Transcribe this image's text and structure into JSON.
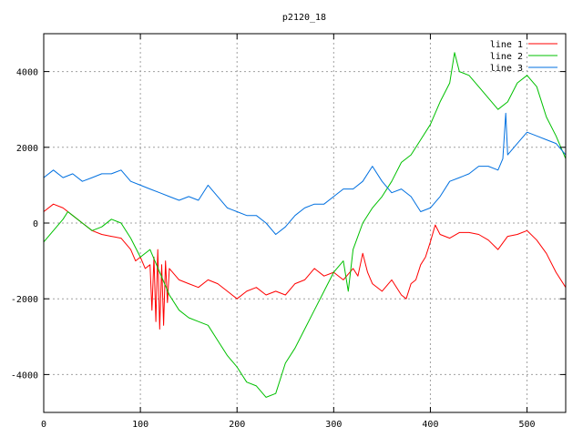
{
  "chart_data": {
    "type": "line",
    "title": "p2120_18",
    "xlabel": "",
    "ylabel": "",
    "xlim": [
      0,
      540
    ],
    "ylim": [
      -5000,
      5000
    ],
    "xticks": [
      0,
      100,
      200,
      300,
      400,
      500
    ],
    "yticks": [
      -4000,
      -2000,
      0,
      2000,
      4000
    ],
    "grid": true,
    "legend_position": "top-right",
    "series": [
      {
        "name": "line 1",
        "color": "#ff0000",
        "x": [
          0,
          10,
          20,
          30,
          40,
          50,
          60,
          70,
          80,
          90,
          95,
          100,
          105,
          110,
          112,
          114,
          116,
          118,
          120,
          122,
          124,
          126,
          128,
          130,
          140,
          150,
          160,
          170,
          180,
          190,
          200,
          210,
          220,
          230,
          240,
          250,
          260,
          270,
          280,
          290,
          300,
          310,
          320,
          325,
          330,
          335,
          340,
          350,
          360,
          370,
          375,
          380,
          385,
          390,
          395,
          400,
          405,
          410,
          420,
          430,
          440,
          450,
          460,
          470,
          480,
          490,
          500,
          510,
          520,
          530,
          540
        ],
        "y": [
          300,
          500,
          400,
          200,
          0,
          -200,
          -300,
          -350,
          -400,
          -700,
          -1000,
          -900,
          -1200,
          -1100,
          -2300,
          -900,
          -2600,
          -700,
          -2800,
          -1100,
          -2700,
          -1000,
          -2100,
          -1200,
          -1500,
          -1600,
          -1700,
          -1500,
          -1600,
          -1800,
          -2000,
          -1800,
          -1700,
          -1900,
          -1800,
          -1900,
          -1600,
          -1500,
          -1200,
          -1400,
          -1300,
          -1500,
          -1200,
          -1400,
          -800,
          -1300,
          -1600,
          -1800,
          -1500,
          -1900,
          -2000,
          -1600,
          -1500,
          -1100,
          -900,
          -500,
          -50,
          -300,
          -400,
          -250,
          -250,
          -300,
          -450,
          -700,
          -350,
          -300,
          -200,
          -450,
          -800,
          -1300,
          -1700
        ]
      },
      {
        "name": "line 2",
        "color": "#00c000",
        "x": [
          0,
          10,
          20,
          25,
          30,
          40,
          50,
          60,
          70,
          80,
          90,
          100,
          110,
          120,
          130,
          140,
          150,
          160,
          170,
          180,
          190,
          200,
          210,
          220,
          230,
          240,
          250,
          260,
          270,
          280,
          290,
          300,
          310,
          315,
          320,
          330,
          340,
          350,
          360,
          370,
          380,
          390,
          400,
          410,
          420,
          425,
          430,
          440,
          450,
          460,
          470,
          480,
          490,
          500,
          510,
          520,
          530,
          540
        ],
        "y": [
          -500,
          -200,
          100,
          300,
          200,
          0,
          -200,
          -100,
          100,
          0,
          -400,
          -900,
          -700,
          -1300,
          -1900,
          -2300,
          -2500,
          -2600,
          -2700,
          -3100,
          -3500,
          -3800,
          -4200,
          -4300,
          -4600,
          -4500,
          -3700,
          -3300,
          -2800,
          -2300,
          -1800,
          -1300,
          -1000,
          -1800,
          -700,
          0,
          400,
          700,
          1100,
          1600,
          1800,
          2200,
          2600,
          3200,
          3700,
          4500,
          4000,
          3900,
          3600,
          3300,
          3000,
          3200,
          3700,
          3900,
          3600,
          2800,
          2300,
          1700
        ]
      },
      {
        "name": "line 3",
        "color": "#0070e0",
        "x": [
          0,
          10,
          20,
          30,
          40,
          50,
          60,
          70,
          80,
          90,
          100,
          110,
          120,
          130,
          140,
          150,
          160,
          170,
          180,
          190,
          200,
          210,
          220,
          230,
          240,
          250,
          260,
          270,
          280,
          290,
          300,
          310,
          320,
          330,
          340,
          350,
          360,
          370,
          380,
          390,
          400,
          410,
          420,
          430,
          440,
          450,
          460,
          470,
          475,
          478,
          480,
          490,
          500,
          510,
          520,
          530,
          540
        ],
        "y": [
          1200,
          1400,
          1200,
          1300,
          1100,
          1200,
          1300,
          1300,
          1400,
          1100,
          1000,
          900,
          800,
          700,
          600,
          700,
          600,
          1000,
          700,
          400,
          300,
          200,
          200,
          0,
          -300,
          -100,
          200,
          400,
          500,
          500,
          700,
          900,
          900,
          1100,
          1500,
          1100,
          800,
          900,
          700,
          300,
          400,
          700,
          1100,
          1200,
          1300,
          1500,
          1500,
          1400,
          1700,
          2900,
          1800,
          2100,
          2400,
          2300,
          2200,
          2100,
          1800
        ]
      }
    ]
  }
}
